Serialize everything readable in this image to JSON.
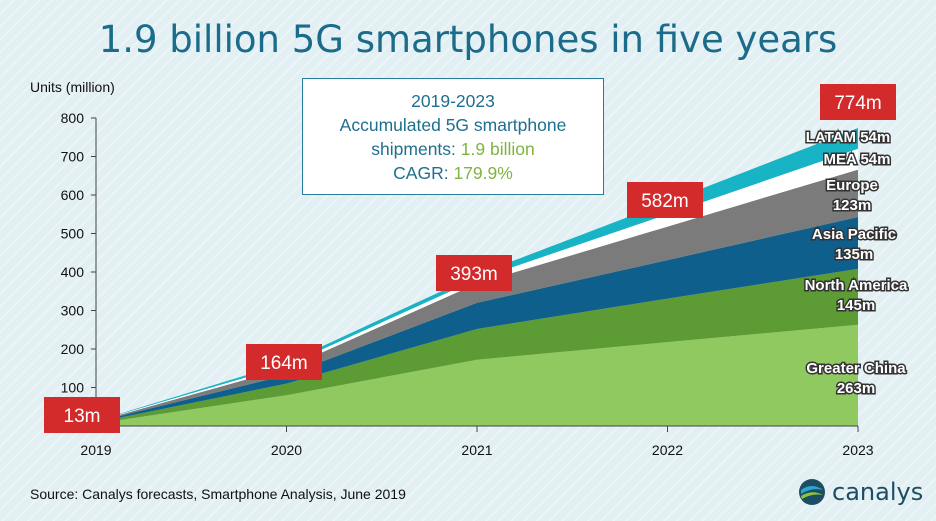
{
  "title": "1.9 billion 5G smartphones in five years",
  "source": "Source: Canalys forecasts, Smartphone Analysis, June 2019",
  "logo": "canalys",
  "infobox": {
    "line1": "2019-2023",
    "line2": "Accumulated 5G smartphone",
    "line3_prefix": "shipments: ",
    "line3_value": "1.9 billion",
    "line4_prefix": "CAGR: ",
    "line4_value": "179.9%"
  },
  "chart_data": {
    "type": "area",
    "stacked": true,
    "ylabel": "Units (million)",
    "ylim": [
      0,
      800
    ],
    "yticks": [
      0,
      100,
      200,
      300,
      400,
      500,
      600,
      700,
      800
    ],
    "categories": [
      "2019",
      "2020",
      "2021",
      "2022",
      "2023"
    ],
    "series": [
      {
        "name": "Greater China",
        "color": "#8fc960",
        "values": [
          6,
          80,
          172,
          218,
          263
        ]
      },
      {
        "name": "North America",
        "color": "#5d9b34",
        "values": [
          3,
          30,
          80,
          113,
          145
        ]
      },
      {
        "name": "Asia Pacific",
        "color": "#0f5f8c",
        "values": [
          2,
          22,
          68,
          100,
          135
        ]
      },
      {
        "name": "Europe",
        "color": "#7b7b7b",
        "values": [
          1,
          18,
          50,
          87,
          123
        ]
      },
      {
        "name": "MEA",
        "color": "#ffffff",
        "values": [
          0.5,
          7,
          11,
          32,
          54
        ]
      },
      {
        "name": "LATAM",
        "color": "#18b3c4",
        "values": [
          0.5,
          7,
          12,
          32,
          54
        ]
      }
    ],
    "totals": [
      "13m",
      "164m",
      "393m",
      "582m",
      "774m"
    ],
    "end_labels": [
      {
        "line1": "Greater China",
        "line2": "263m"
      },
      {
        "line1": "North America",
        "line2": "145m"
      },
      {
        "line1": "Asia Pacific",
        "line2": "135m"
      },
      {
        "line1": "Europe",
        "line2": "123m"
      },
      {
        "line1": "MEA 54m",
        "line2": ""
      },
      {
        "line1": "LATAM 54m",
        "line2": ""
      }
    ],
    "total_label_color": "#d32b2b",
    "legend": "none",
    "grid": false
  }
}
